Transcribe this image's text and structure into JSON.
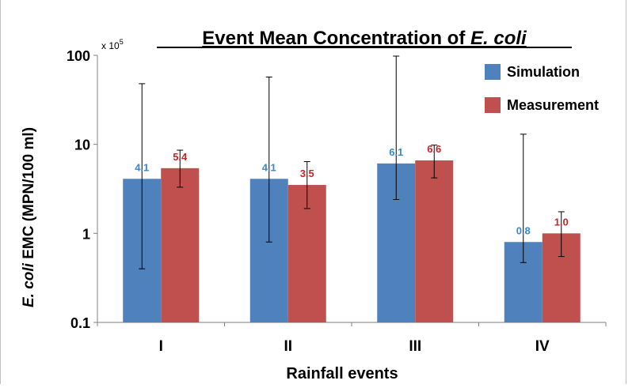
{
  "chart_data": {
    "type": "bar",
    "title_prefix": "Event Mean Concentration of ",
    "title_italic": "E. coli",
    "scale_note_prefix": "x 10",
    "scale_note_exp": "5",
    "ylabel_italic": "E. coli",
    "ylabel_rest": " EMC (MPN/100 ml)",
    "xlabel": "Rainfall events",
    "y_scale": "log",
    "ylim": [
      0.1,
      100
    ],
    "y_ticks": [
      0.1,
      1,
      10,
      100
    ],
    "y_tick_labels": [
      "0.1",
      "1",
      "10",
      "100"
    ],
    "categories": [
      "I",
      "II",
      "III",
      "IV"
    ],
    "grid": false,
    "legend_position": "top-right",
    "series": [
      {
        "name": "Simulation",
        "color": "#4F81BD",
        "label_color": "#3A87D0",
        "values": [
          4.1,
          4.1,
          6.1,
          0.8
        ],
        "value_labels": [
          "4.1",
          "4.1",
          "6.1",
          "0.8"
        ],
        "error_low": [
          0.4,
          0.8,
          2.4,
          0.47
        ],
        "error_high": [
          48,
          57,
          98,
          13
        ]
      },
      {
        "name": "Measurement",
        "color": "#C0504D",
        "label_color": "#C0282B",
        "values": [
          5.4,
          3.5,
          6.6,
          1.0
        ],
        "value_labels": [
          "5.4",
          "3.5",
          "6.6",
          "1.0"
        ],
        "error_low": [
          3.3,
          1.9,
          4.2,
          0.55
        ],
        "error_high": [
          8.6,
          6.4,
          9.8,
          1.75
        ]
      }
    ]
  }
}
